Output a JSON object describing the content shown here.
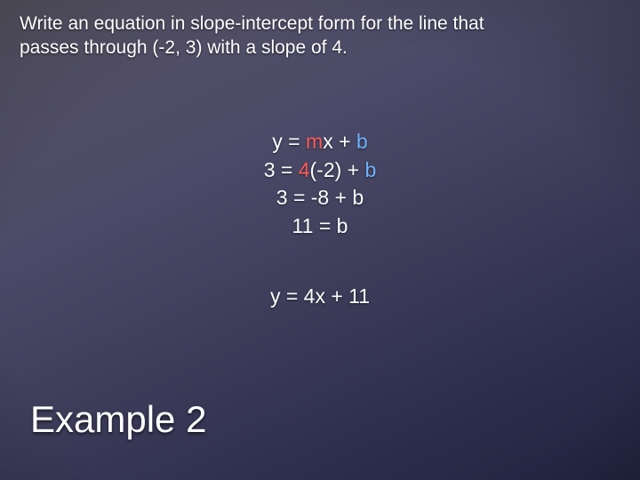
{
  "colors": {
    "text": "#ffffff",
    "m_highlight": "#ff5a5a",
    "b_highlight": "#6fb2ff",
    "bg_gradient_stops": [
      "#5a5766",
      "#514e66",
      "#4a4a68",
      "#3e3d5a",
      "#303050",
      "#1f233d"
    ]
  },
  "typography": {
    "prompt_fontsize": 21,
    "work_fontsize": 23,
    "title_fontsize": 42,
    "font_family": "Trebuchet MS"
  },
  "prompt": {
    "line1": "Write an equation in slope-intercept form for the line that",
    "line2": "passes through (-2, 3) with a slope of 4."
  },
  "work": {
    "l1": {
      "pre": "y = ",
      "m": "m",
      "mid": "x + ",
      "b": "b"
    },
    "l2": {
      "pre": "3 = ",
      "m": "4",
      "mid": "(-2) + ",
      "b": "b"
    },
    "l3": "3 = -8 + b",
    "l4": "11 = b"
  },
  "answer": "y = 4x + 11",
  "title": "Example 2"
}
